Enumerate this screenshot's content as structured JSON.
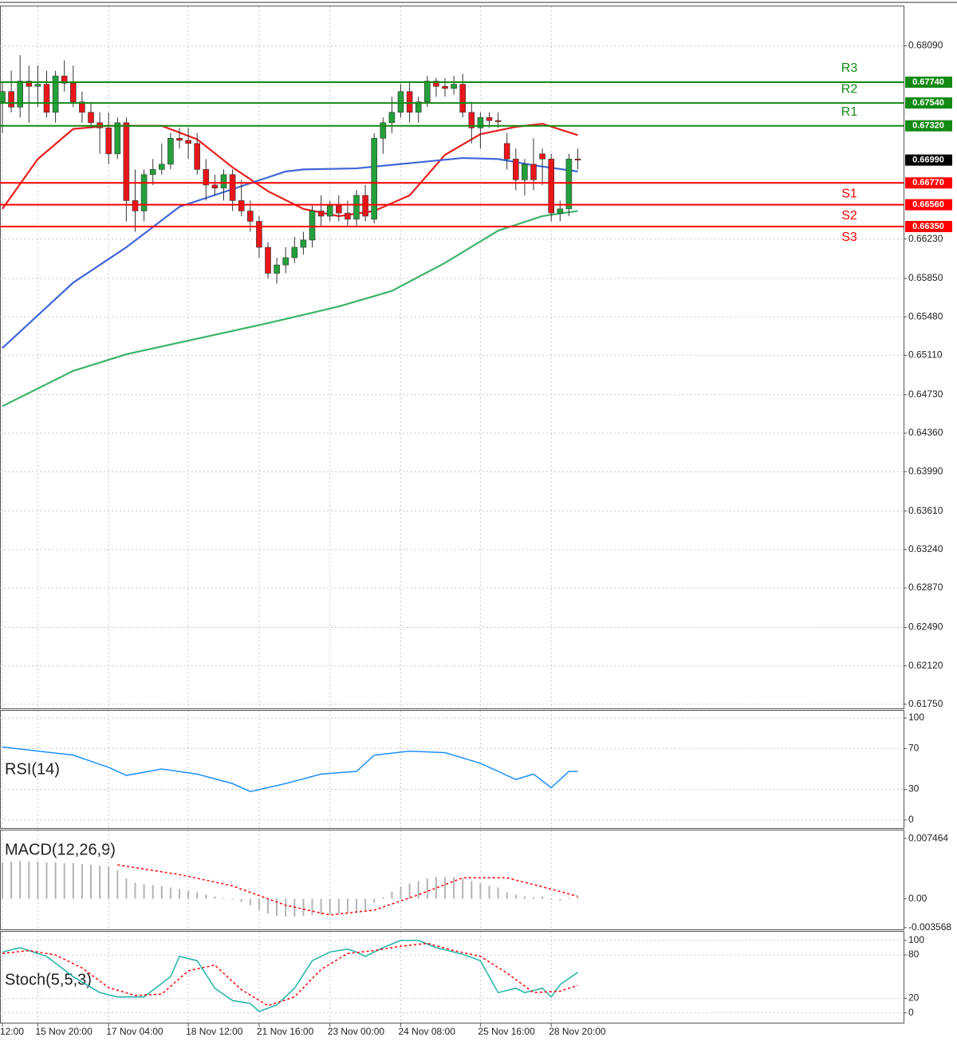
{
  "chart_data": [
    {
      "type": "candlestick",
      "categories": [
        "12:00",
        null,
        null,
        null,
        "15 Nov 20:00",
        null,
        null,
        null,
        null,
        null,
        null,
        null,
        "17 Nov 04:00",
        null,
        null,
        null,
        null,
        null,
        null,
        null,
        null,
        "18 Nov 12:00",
        null,
        null,
        null,
        null,
        null,
        null,
        null,
        "21 Nov 16:00",
        null,
        null,
        null,
        null,
        null,
        null,
        null,
        "23 Nov 00:00",
        null,
        null,
        null,
        null,
        null,
        null,
        null,
        "24 Nov 08:00",
        null,
        null,
        null,
        null,
        null,
        null,
        null,
        null,
        "25 Nov 16:00",
        null,
        null,
        null,
        null,
        null,
        null,
        null,
        "28 Nov 20:00",
        null,
        null,
        null
      ],
      "open": [
        0.6755,
        0.6765,
        0.675,
        0.6775,
        0.677,
        0.6772,
        0.6745,
        0.678,
        0.6773,
        0.6755,
        0.6745,
        0.6735,
        0.673,
        0.6705,
        0.6735,
        0.666,
        0.665,
        0.6685,
        0.669,
        0.6695,
        0.672,
        0.6718,
        0.6715,
        0.669,
        0.6675,
        0.6672,
        0.6685,
        0.666,
        0.665,
        0.664,
        0.6615,
        0.659,
        0.6598,
        0.6605,
        0.6615,
        0.6622,
        0.665,
        0.6645,
        0.6655,
        0.6648,
        0.6642,
        0.6665,
        0.6642,
        0.672,
        0.6735,
        0.6745,
        0.6765,
        0.6745,
        0.6755,
        0.6775,
        0.677,
        0.6768,
        0.6772,
        0.6745,
        0.673,
        0.674,
        0.6737,
        0.6715,
        0.67,
        0.668,
        0.6695,
        0.6705,
        0.67,
        0.6648,
        0.6652,
        0.67
      ],
      "high": [
        0.6775,
        0.6785,
        0.68,
        0.679,
        0.679,
        0.6785,
        0.6785,
        0.6795,
        0.679,
        0.6765,
        0.6755,
        0.6745,
        0.6745,
        0.674,
        0.674,
        0.669,
        0.669,
        0.67,
        0.6715,
        0.6725,
        0.673,
        0.673,
        0.6725,
        0.67,
        0.6685,
        0.669,
        0.669,
        0.668,
        0.666,
        0.6645,
        0.662,
        0.6605,
        0.6615,
        0.6625,
        0.663,
        0.6655,
        0.6665,
        0.666,
        0.6665,
        0.666,
        0.667,
        0.6675,
        0.6725,
        0.674,
        0.676,
        0.6772,
        0.6775,
        0.676,
        0.678,
        0.6778,
        0.6778,
        0.678,
        0.6782,
        0.6755,
        0.6745,
        0.6745,
        0.6745,
        0.6725,
        0.671,
        0.67,
        0.672,
        0.671,
        0.6705,
        0.666,
        0.6705,
        0.671
      ],
      "low": [
        0.6725,
        0.6745,
        0.674,
        0.6735,
        0.675,
        0.674,
        0.6735,
        0.6765,
        0.675,
        0.6735,
        0.673,
        0.6705,
        0.6695,
        0.67,
        0.664,
        0.663,
        0.664,
        0.6675,
        0.6685,
        0.669,
        0.671,
        0.67,
        0.6685,
        0.666,
        0.6665,
        0.666,
        0.665,
        0.6645,
        0.663,
        0.6605,
        0.6585,
        0.658,
        0.659,
        0.66,
        0.6608,
        0.6615,
        0.6635,
        0.664,
        0.664,
        0.6635,
        0.6635,
        0.664,
        0.6638,
        0.6705,
        0.6725,
        0.674,
        0.6735,
        0.6735,
        0.675,
        0.676,
        0.676,
        0.6762,
        0.674,
        0.6715,
        0.671,
        0.673,
        0.673,
        0.669,
        0.667,
        0.6665,
        0.667,
        0.6675,
        0.664,
        0.664,
        0.6645,
        0.669
      ],
      "close": [
        0.6765,
        0.675,
        0.6775,
        0.677,
        0.6772,
        0.6745,
        0.678,
        0.6773,
        0.6755,
        0.6745,
        0.6735,
        0.673,
        0.6705,
        0.6735,
        0.666,
        0.665,
        0.6685,
        0.669,
        0.6695,
        0.672,
        0.6718,
        0.6715,
        0.669,
        0.6675,
        0.6672,
        0.6685,
        0.666,
        0.665,
        0.664,
        0.6615,
        0.659,
        0.6598,
        0.6605,
        0.6615,
        0.6622,
        0.665,
        0.6645,
        0.6655,
        0.6648,
        0.6642,
        0.6665,
        0.6645,
        0.672,
        0.6735,
        0.6745,
        0.6765,
        0.6745,
        0.6755,
        0.6775,
        0.677,
        0.6768,
        0.6772,
        0.6745,
        0.673,
        0.674,
        0.6737,
        0.6736,
        0.67,
        0.668,
        0.6695,
        0.668,
        0.67,
        0.6648,
        0.6652,
        0.67,
        0.6699
      ],
      "up_color": "#23a03a",
      "down_color": "#e8161b",
      "overlays": [
        {
          "color": "#e8201e",
          "x": [
            0,
            4,
            8,
            12,
            18,
            22,
            26,
            30,
            34,
            38,
            42,
            46,
            50,
            54,
            58,
            61,
            65
          ],
          "values": [
            0.6652,
            0.67,
            0.6729,
            0.6732,
            0.6732,
            0.6719,
            0.6692,
            0.6669,
            0.6652,
            0.6645,
            0.665,
            0.6665,
            0.6704,
            0.6724,
            0.6731,
            0.6734,
            0.6723
          ]
        },
        {
          "color": "#3f66d8",
          "x": [
            0,
            8,
            14,
            20,
            26,
            32,
            34,
            40,
            46,
            52,
            56,
            60,
            65
          ],
          "values": [
            0.6518,
            0.6581,
            0.6615,
            0.6654,
            0.6671,
            0.6688,
            0.669,
            0.6691,
            0.6696,
            0.6701,
            0.67,
            0.6694,
            0.6688
          ]
        },
        {
          "color": "#3cb36a",
          "x": [
            0,
            8,
            14,
            22,
            30,
            38,
            44,
            50,
            56,
            61,
            65
          ],
          "values": [
            0.6462,
            0.6496,
            0.6512,
            0.6527,
            0.6542,
            0.6558,
            0.6573,
            0.66,
            0.6631,
            0.6645,
            0.665
          ]
        }
      ],
      "levels": [
        {
          "name": "R3",
          "value": 0.6774,
          "value_label": "0.67740",
          "color": "#138a13"
        },
        {
          "name": "R2",
          "value": 0.6754,
          "value_label": "0.67540",
          "color": "#138a13"
        },
        {
          "name": "R1",
          "value": 0.6732,
          "value_label": "0.67320",
          "color": "#138a13"
        },
        {
          "name": "S1",
          "value": 0.6677,
          "value_label": "0.66770",
          "color": "#ff0000"
        },
        {
          "name": "S2",
          "value": 0.6656,
          "value_label": "0.66560",
          "color": "#ff0000"
        },
        {
          "name": "S3",
          "value": 0.6635,
          "value_label": "0.66350",
          "color": "#ff0000"
        }
      ],
      "last_price": {
        "value": 0.6699,
        "value_label": "0.66990"
      },
      "ylim": [
        0.6171,
        0.6847
      ],
      "yticks": [
        {
          "value": 0.6809,
          "label": "0.68090"
        },
        {
          "value": 0.6623,
          "label": "0.66230"
        },
        {
          "value": 0.6585,
          "label": "0.65850"
        },
        {
          "value": 0.6548,
          "label": "0.65480"
        },
        {
          "value": 0.6511,
          "label": "0.65110"
        },
        {
          "value": 0.6473,
          "label": "0.64730"
        },
        {
          "value": 0.6436,
          "label": "0.64360"
        },
        {
          "value": 0.6399,
          "label": "0.63990"
        },
        {
          "value": 0.6361,
          "label": "0.63610"
        },
        {
          "value": 0.6324,
          "label": "0.63240"
        },
        {
          "value": 0.6287,
          "label": "0.62870"
        },
        {
          "value": 0.6249,
          "label": "0.62490"
        },
        {
          "value": 0.6212,
          "label": "0.62120"
        },
        {
          "value": 0.6175,
          "label": "0.61750"
        }
      ],
      "grid": true
    },
    {
      "type": "line",
      "title": "RSI(14)",
      "series": [
        {
          "color": "#1e90ff",
          "x": [
            0,
            4,
            8,
            12,
            14,
            18,
            22,
            26,
            28,
            32,
            36,
            40,
            42,
            46,
            50,
            54,
            58,
            60,
            62,
            64,
            65
          ],
          "values": [
            71.6,
            67.6,
            63.6,
            51.6,
            43.7,
            50,
            45,
            35.7,
            27.8,
            35.7,
            45,
            47.6,
            63.5,
            67.5,
            66,
            55.6,
            39.7,
            45,
            31.7,
            47.6,
            47.6
          ]
        }
      ],
      "ylim": [
        -7.9,
        107.1
      ],
      "yticks": [
        100,
        70,
        30,
        0
      ],
      "grid": true
    },
    {
      "type": "macd",
      "title": "MACD(12,26,9)",
      "histogram": {
        "color": "#b4b4b4",
        "values": [
          0.0045,
          0.0046,
          0.0047,
          0.0046,
          0.0046,
          0.0045,
          0.0045,
          0.0044,
          0.0044,
          0.0043,
          0.0042,
          0.0041,
          0.004,
          0.0035,
          0.0025,
          0.002,
          0.0018,
          0.0017,
          0.0016,
          0.0014,
          0.0012,
          0.001,
          0.0008,
          0.0005,
          0.0003,
          0.0001,
          -0.0001,
          -0.0004,
          -0.0008,
          -0.0014,
          -0.0018,
          -0.0021,
          -0.0022,
          -0.0022,
          -0.0021,
          -0.002,
          -0.002,
          -0.0019,
          -0.0019,
          -0.0018,
          -0.0016,
          -0.0014,
          -0.0005,
          0.0002,
          0.0009,
          0.0015,
          0.0019,
          0.0022,
          0.0025,
          0.0027,
          0.0027,
          0.0027,
          0.0025,
          0.0022,
          0.0019,
          0.0016,
          0.0014,
          0.0008,
          0.0005,
          0.0003,
          0.0002,
          0.0003,
          -0.0001,
          -0.0002,
          0.0001,
          0.0002
        ]
      },
      "series": [
        {
          "color": "#ff0000",
          "dash": true,
          "x": [
            13,
            20,
            26,
            32,
            37,
            42,
            47,
            52,
            57,
            62,
            65
          ],
          "values": [
            0.0042,
            0.003,
            0.0016,
            -0.0008,
            -0.002,
            -0.0014,
            0.0005,
            0.0026,
            0.0026,
            0.0012,
            0.0003
          ]
        }
      ],
      "ylim": [
        -0.00378,
        0.00846
      ],
      "yticks": [
        0.007464,
        {
          "value": 0,
          "label": "0.00"
        },
        -0.003568
      ],
      "grid": false
    },
    {
      "type": "line",
      "title": "Stoch(5,5,3)",
      "series": [
        {
          "color": "#20b2aa",
          "x": [
            0,
            2,
            5,
            8,
            11,
            13,
            16,
            19,
            20,
            22,
            24,
            26,
            28,
            29,
            31,
            33,
            35,
            37,
            39,
            40,
            41,
            43,
            45,
            47,
            49,
            52,
            54,
            56,
            58,
            59,
            61,
            62,
            63,
            65
          ],
          "values": [
            84,
            90,
            78,
            50,
            28,
            22,
            22,
            50,
            78,
            72,
            34,
            17,
            13,
            2,
            11,
            34,
            72,
            84,
            88,
            84,
            78,
            90,
            100,
            100,
            90,
            81,
            72,
            28,
            34,
            28,
            34,
            22,
            39,
            56
          ]
        },
        {
          "color": "#ff0000",
          "dash": true,
          "x": [
            0,
            3,
            6,
            9,
            12,
            15,
            18,
            21,
            24,
            27,
            30,
            33,
            36,
            39,
            42,
            45,
            48,
            51,
            54,
            57,
            60,
            63,
            65
          ],
          "values": [
            82,
            86,
            80,
            62,
            35,
            24,
            26,
            58,
            66,
            32,
            10,
            22,
            60,
            82,
            86,
            92,
            96,
            86,
            78,
            55,
            28,
            30,
            38
          ]
        }
      ],
      "ylim": [
        -13.5,
        112
      ],
      "yticks": [
        100,
        80,
        20,
        0
      ],
      "grid": true
    }
  ]
}
